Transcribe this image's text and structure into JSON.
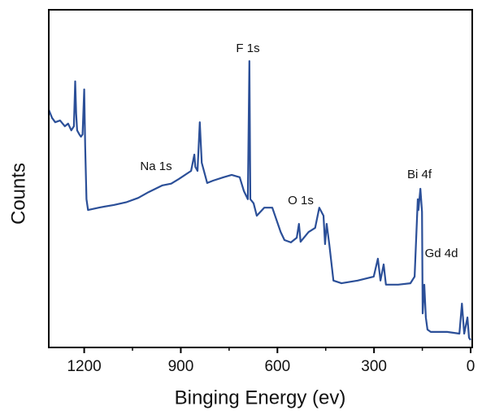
{
  "chart_data": {
    "type": "line",
    "xlabel": "Binging Energy (ev)",
    "ylabel": "Counts",
    "xlim": [
      1310,
      -5
    ],
    "ylim": [
      0,
      100
    ],
    "xticks": [
      1200,
      900,
      600,
      300,
      0
    ],
    "xminor": [
      1050,
      750,
      450,
      150
    ],
    "annotations": [
      "F 1s",
      "Na 1s",
      "O 1s",
      "Bi 4f",
      "Gd 4d"
    ],
    "series": [
      {
        "name": "Counts",
        "color": "#2b4f98",
        "x": [
          1310,
          1300,
          1290,
          1275,
          1260,
          1250,
          1240,
          1232,
          1228,
          1225,
          1222,
          1215,
          1210,
          1205,
          1200,
          1197,
          1193,
          1188,
          1150,
          1108,
          1070,
          1032,
          1000,
          957,
          930,
          906,
          868,
          858,
          855,
          848,
          841,
          835,
          818,
          800,
          767,
          742,
          717,
          704,
          692,
          687,
          684,
          674,
          664,
          641,
          616,
          590,
          578,
          558,
          540,
          533,
          528,
          503,
          483,
          470,
          457,
          452,
          447,
          439,
          426,
          401,
          351,
          301,
          288,
          280,
          270,
          263,
          225,
          187,
          174,
          164,
          162,
          156,
          151,
          149,
          144,
          139,
          134,
          124,
          73,
          35,
          27,
          20,
          10,
          5,
          0
        ],
        "values": [
          70.4,
          68.0,
          66.7,
          67.2,
          65.5,
          66.3,
          64.3,
          65.5,
          78.8,
          69.2,
          64.3,
          63.1,
          62.4,
          63.1,
          76.4,
          59.5,
          43.9,
          40.7,
          41.5,
          42.2,
          43.0,
          44.3,
          46.0,
          48.0,
          48.5,
          49.9,
          52.3,
          57.1,
          53.5,
          52.3,
          66.7,
          54.7,
          48.7,
          49.4,
          50.4,
          51.1,
          50.4,
          46.3,
          43.9,
          84.8,
          43.9,
          42.7,
          39.0,
          41.4,
          41.4,
          34.2,
          31.8,
          31.1,
          32.5,
          36.6,
          31.3,
          34.2,
          35.4,
          41.4,
          39.0,
          30.6,
          36.6,
          30.6,
          19.8,
          19.0,
          19.8,
          21.0,
          26.3,
          19.8,
          24.6,
          18.6,
          18.6,
          19.0,
          21.0,
          43.9,
          40.7,
          47.0,
          40.2,
          10.1,
          18.6,
          8.9,
          5.3,
          4.6,
          4.6,
          4.1,
          13.0,
          4.1,
          8.9,
          2.9,
          2.2
        ]
      }
    ]
  }
}
